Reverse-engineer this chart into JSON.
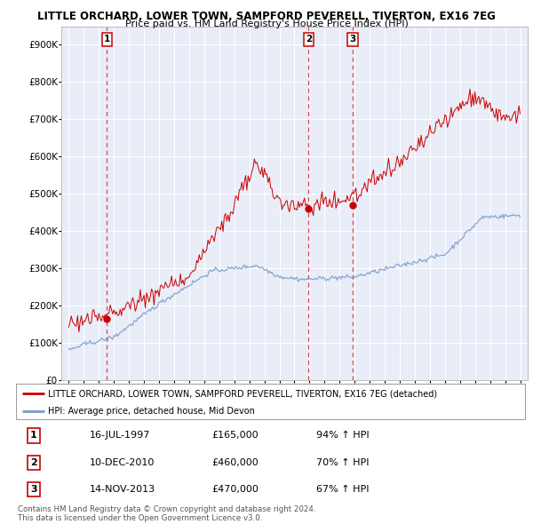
{
  "title1": "LITTLE ORCHARD, LOWER TOWN, SAMPFORD PEVERELL, TIVERTON, EX16 7EG",
  "title2": "Price paid vs. HM Land Registry's House Price Index (HPI)",
  "ylim": [
    0,
    950000
  ],
  "yticks": [
    0,
    100000,
    200000,
    300000,
    400000,
    500000,
    600000,
    700000,
    800000,
    900000
  ],
  "ytick_labels": [
    "£0",
    "£100K",
    "£200K",
    "£300K",
    "£400K",
    "£500K",
    "£600K",
    "£700K",
    "£800K",
    "£900K"
  ],
  "sale_dates": [
    1997.54,
    2010.94,
    2013.87
  ],
  "sale_prices": [
    165000,
    460000,
    470000
  ],
  "sale_labels": [
    "1",
    "2",
    "3"
  ],
  "vline_color": "#dd3333",
  "sale_color": "#cc0000",
  "hpi_color": "#7799cc",
  "plot_bg": "#e8edf8",
  "legend_label_red": "LITTLE ORCHARD, LOWER TOWN, SAMPFORD PEVERELL, TIVERTON, EX16 7EG (detached)",
  "legend_label_blue": "HPI: Average price, detached house, Mid Devon",
  "table_rows": [
    [
      "1",
      "16-JUL-1997",
      "£165,000",
      "94% ↑ HPI"
    ],
    [
      "2",
      "10-DEC-2010",
      "£460,000",
      "70% ↑ HPI"
    ],
    [
      "3",
      "14-NOV-2013",
      "£470,000",
      "67% ↑ HPI"
    ]
  ],
  "footer": "Contains HM Land Registry data © Crown copyright and database right 2024.\nThis data is licensed under the Open Government Licence v3.0.",
  "xmin": 1994.5,
  "xmax": 2025.5
}
